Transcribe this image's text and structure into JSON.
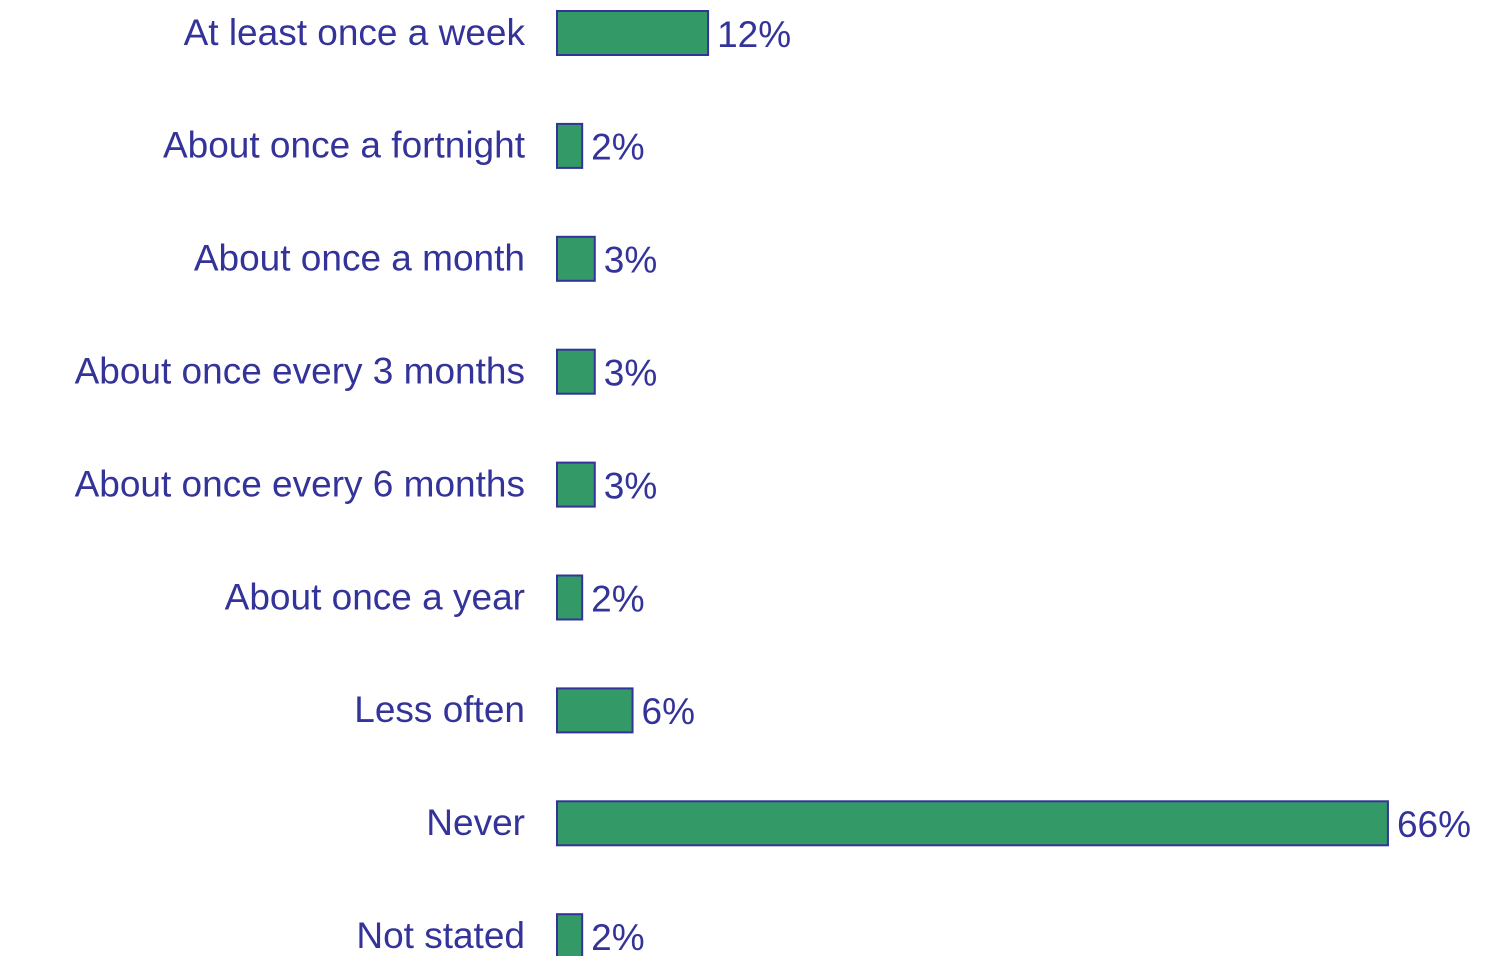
{
  "chart_data": {
    "type": "bar",
    "orientation": "horizontal",
    "categories": [
      "At least once a week",
      "About once a fortnight",
      "About once a month",
      "About once every 3 months",
      "About once every 6 months",
      "About once a year",
      "Less often",
      "Never",
      "Not stated"
    ],
    "values": [
      12,
      2,
      3,
      3,
      3,
      2,
      6,
      66,
      2
    ],
    "value_labels": [
      "12%",
      "2%",
      "3%",
      "3%",
      "3%",
      "2%",
      "6%",
      "66%",
      "2%"
    ],
    "color": "#339966",
    "edge_color": "#333399"
  }
}
